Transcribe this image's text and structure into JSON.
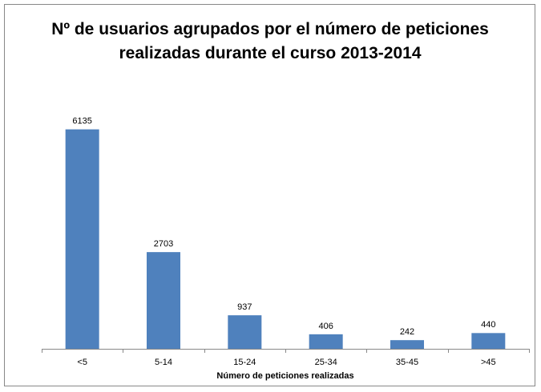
{
  "chart_data": {
    "type": "bar",
    "title": "Nº de usuarios agrupados por el número de peticiones realizadas durante el curso 2013-2014",
    "x_label": "Número de peticiones realizadas",
    "categories": [
      "<5",
      "5-14",
      "15-24",
      "25-34",
      "35-45",
      ">45"
    ],
    "values": [
      6135,
      2703,
      937,
      406,
      242,
      440
    ],
    "color": "#4f81bd",
    "ylim": [
      0,
      7000
    ]
  }
}
